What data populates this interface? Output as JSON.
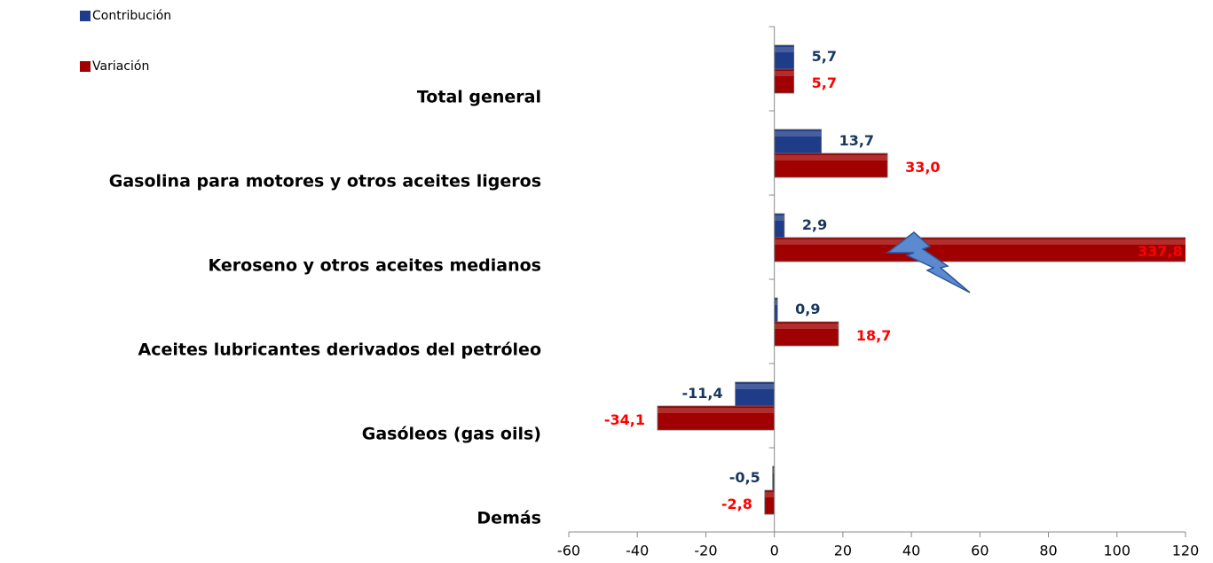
{
  "chart_data": {
    "type": "hbar",
    "categories": [
      "Total general",
      "Gasolina para motores y otros aceites ligeros",
      "Keroseno y otros aceites medianos",
      "Aceites lubricantes derivados del petróleo",
      "Gasóleos (gas oils)",
      "Demás"
    ],
    "series": [
      {
        "name": "Contribución",
        "color": "#1f3c88",
        "label_color": "#17375e",
        "values": [
          5.7,
          13.7,
          2.9,
          0.9,
          -11.4,
          -0.5
        ],
        "value_labels": [
          "5,7",
          "13,7",
          "2,9",
          "0,9",
          "-11,4",
          "-0,5"
        ]
      },
      {
        "name": "Variación",
        "color": "#a00000",
        "label_color": "#ff0000",
        "values": [
          5.7,
          33.0,
          337.8,
          18.7,
          -34.1,
          -2.8
        ],
        "value_labels": [
          "5,7",
          "33,0",
          "337,8",
          "18,7",
          "-34,1",
          "-2,8"
        ]
      }
    ],
    "xlim": [
      -60,
      120
    ],
    "xticks": [
      -60,
      -40,
      -20,
      0,
      20,
      40,
      60,
      80,
      100,
      120
    ],
    "legend": "top-left"
  }
}
